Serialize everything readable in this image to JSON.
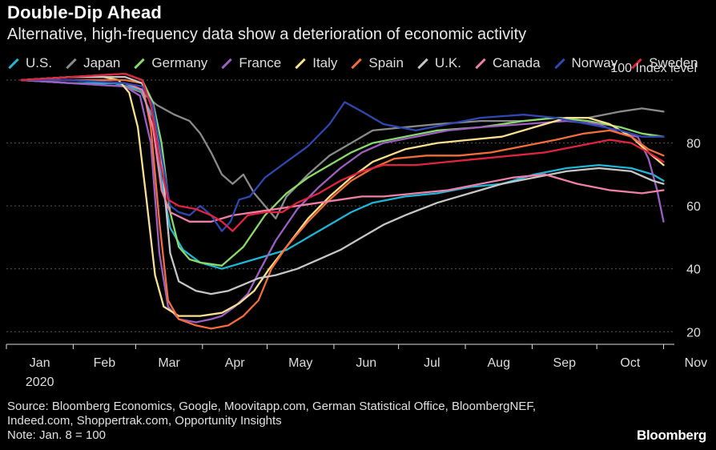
{
  "chart_data": {
    "type": "line",
    "title": "Double-Dip Ahead",
    "subtitle": "Alternative, high-frequency data show a deterioration of economic activity",
    "ylabel": "100 Index level",
    "ylim": [
      16,
      100
    ],
    "y_ticks": [
      20,
      40,
      60,
      80
    ],
    "x_ticks": [
      "Jan",
      "Feb",
      "Mar",
      "Apr",
      "May",
      "Jun",
      "Jul",
      "Aug",
      "Sep",
      "Oct",
      "Nov"
    ],
    "year_label": "2020",
    "xlim": [
      0,
      310
    ],
    "x_unit": "day of 2020 (Jan 1 = 0)",
    "grid": true,
    "legend_position": "top",
    "series": [
      {
        "name": "U.S.",
        "color": "#1fb6d6",
        "points": [
          [
            7,
            100
          ],
          [
            30,
            99
          ],
          [
            50,
            99
          ],
          [
            62,
            97
          ],
          [
            68,
            88
          ],
          [
            72,
            68
          ],
          [
            76,
            53
          ],
          [
            82,
            46
          ],
          [
            90,
            42
          ],
          [
            100,
            40
          ],
          [
            110,
            42
          ],
          [
            120,
            44
          ],
          [
            130,
            46
          ],
          [
            140,
            50
          ],
          [
            150,
            54
          ],
          [
            160,
            58
          ],
          [
            170,
            61
          ],
          [
            185,
            63
          ],
          [
            200,
            64
          ],
          [
            215,
            66
          ],
          [
            230,
            67
          ],
          [
            245,
            70
          ],
          [
            260,
            72
          ],
          [
            275,
            73
          ],
          [
            290,
            72
          ],
          [
            300,
            70
          ],
          [
            305,
            68
          ]
        ]
      },
      {
        "name": "Japan",
        "color": "#8a8a8a",
        "points": [
          [
            7,
            100
          ],
          [
            30,
            99
          ],
          [
            55,
            98
          ],
          [
            63,
            96
          ],
          [
            70,
            92
          ],
          [
            78,
            89
          ],
          [
            85,
            87
          ],
          [
            90,
            83
          ],
          [
            95,
            77
          ],
          [
            100,
            70
          ],
          [
            105,
            67
          ],
          [
            110,
            70
          ],
          [
            115,
            64
          ],
          [
            120,
            60
          ],
          [
            125,
            56
          ],
          [
            130,
            63
          ],
          [
            140,
            70
          ],
          [
            150,
            76
          ],
          [
            160,
            80
          ],
          [
            170,
            84
          ],
          [
            185,
            85
          ],
          [
            200,
            86
          ],
          [
            220,
            87
          ],
          [
            240,
            87
          ],
          [
            255,
            88
          ],
          [
            270,
            88
          ],
          [
            285,
            90
          ],
          [
            295,
            91
          ],
          [
            305,
            90
          ]
        ]
      },
      {
        "name": "Germany",
        "color": "#89d96b",
        "points": [
          [
            7,
            100
          ],
          [
            30,
            101
          ],
          [
            55,
            102
          ],
          [
            63,
            100
          ],
          [
            68,
            93
          ],
          [
            72,
            80
          ],
          [
            76,
            58
          ],
          [
            80,
            47
          ],
          [
            85,
            43
          ],
          [
            90,
            42
          ],
          [
            100,
            41
          ],
          [
            110,
            47
          ],
          [
            120,
            57
          ],
          [
            130,
            64
          ],
          [
            140,
            69
          ],
          [
            150,
            73
          ],
          [
            160,
            77
          ],
          [
            170,
            80
          ],
          [
            185,
            82
          ],
          [
            200,
            84
          ],
          [
            220,
            85
          ],
          [
            240,
            87
          ],
          [
            255,
            88
          ],
          [
            270,
            87
          ],
          [
            285,
            85
          ],
          [
            295,
            83
          ],
          [
            305,
            82
          ]
        ]
      },
      {
        "name": "France",
        "color": "#9d5fc2",
        "points": [
          [
            7,
            100
          ],
          [
            30,
            99
          ],
          [
            55,
            98
          ],
          [
            62,
            95
          ],
          [
            67,
            80
          ],
          [
            71,
            45
          ],
          [
            75,
            28
          ],
          [
            80,
            24
          ],
          [
            88,
            23
          ],
          [
            95,
            24
          ],
          [
            100,
            25
          ],
          [
            106,
            28
          ],
          [
            112,
            32
          ],
          [
            118,
            40
          ],
          [
            125,
            49
          ],
          [
            135,
            59
          ],
          [
            145,
            66
          ],
          [
            155,
            72
          ],
          [
            165,
            77
          ],
          [
            175,
            80
          ],
          [
            190,
            82
          ],
          [
            205,
            84
          ],
          [
            220,
            85
          ],
          [
            240,
            86
          ],
          [
            260,
            87
          ],
          [
            275,
            86
          ],
          [
            285,
            83
          ],
          [
            293,
            82
          ],
          [
            298,
            75
          ],
          [
            302,
            65
          ],
          [
            305,
            55
          ]
        ]
      },
      {
        "name": "Italy",
        "color": "#f9e08e",
        "points": [
          [
            7,
            100
          ],
          [
            30,
            101
          ],
          [
            45,
            101
          ],
          [
            52,
            100
          ],
          [
            57,
            96
          ],
          [
            61,
            85
          ],
          [
            65,
            62
          ],
          [
            69,
            38
          ],
          [
            73,
            28
          ],
          [
            80,
            25
          ],
          [
            90,
            25
          ],
          [
            100,
            26
          ],
          [
            108,
            29
          ],
          [
            115,
            33
          ],
          [
            122,
            40
          ],
          [
            130,
            47
          ],
          [
            140,
            56
          ],
          [
            150,
            63
          ],
          [
            160,
            69
          ],
          [
            170,
            74
          ],
          [
            185,
            78
          ],
          [
            200,
            80
          ],
          [
            215,
            81
          ],
          [
            230,
            82
          ],
          [
            245,
            85
          ],
          [
            260,
            88
          ],
          [
            270,
            88
          ],
          [
            280,
            86
          ],
          [
            290,
            82
          ],
          [
            298,
            77
          ],
          [
            305,
            73
          ]
        ]
      },
      {
        "name": "Spain",
        "color": "#f26d3a",
        "points": [
          [
            7,
            100
          ],
          [
            30,
            100
          ],
          [
            55,
            100
          ],
          [
            63,
            99
          ],
          [
            67,
            85
          ],
          [
            71,
            55
          ],
          [
            75,
            30
          ],
          [
            80,
            24
          ],
          [
            88,
            22
          ],
          [
            95,
            21
          ],
          [
            103,
            22
          ],
          [
            110,
            25
          ],
          [
            117,
            30
          ],
          [
            123,
            40
          ],
          [
            130,
            47
          ],
          [
            140,
            55
          ],
          [
            150,
            62
          ],
          [
            160,
            68
          ],
          [
            170,
            72
          ],
          [
            180,
            75
          ],
          [
            195,
            76
          ],
          [
            210,
            76
          ],
          [
            225,
            77
          ],
          [
            240,
            79
          ],
          [
            255,
            81
          ],
          [
            268,
            83
          ],
          [
            280,
            84
          ],
          [
            290,
            82
          ],
          [
            298,
            78
          ],
          [
            305,
            76
          ]
        ]
      },
      {
        "name": "U.K.",
        "color": "#c6c6c6",
        "points": [
          [
            7,
            100
          ],
          [
            30,
            101
          ],
          [
            55,
            101
          ],
          [
            63,
            99
          ],
          [
            68,
            92
          ],
          [
            72,
            75
          ],
          [
            76,
            45
          ],
          [
            80,
            36
          ],
          [
            88,
            33
          ],
          [
            95,
            32
          ],
          [
            103,
            33
          ],
          [
            110,
            35
          ],
          [
            117,
            37
          ],
          [
            125,
            38
          ],
          [
            135,
            40
          ],
          [
            145,
            43
          ],
          [
            155,
            46
          ],
          [
            165,
            50
          ],
          [
            175,
            54
          ],
          [
            185,
            57
          ],
          [
            200,
            61
          ],
          [
            215,
            64
          ],
          [
            230,
            67
          ],
          [
            245,
            69
          ],
          [
            260,
            71
          ],
          [
            275,
            72
          ],
          [
            290,
            71
          ],
          [
            300,
            68
          ],
          [
            305,
            67
          ]
        ]
      },
      {
        "name": "Canada",
        "color": "#ef7fa7",
        "points": [
          [
            7,
            100
          ],
          [
            30,
            100
          ],
          [
            55,
            99
          ],
          [
            63,
            97
          ],
          [
            68,
            85
          ],
          [
            72,
            65
          ],
          [
            76,
            58
          ],
          [
            85,
            55
          ],
          [
            95,
            55
          ],
          [
            105,
            57
          ],
          [
            115,
            58
          ],
          [
            125,
            59
          ],
          [
            135,
            60
          ],
          [
            145,
            61
          ],
          [
            155,
            62
          ],
          [
            165,
            63
          ],
          [
            175,
            63
          ],
          [
            190,
            64
          ],
          [
            205,
            65
          ],
          [
            220,
            67
          ],
          [
            235,
            69
          ],
          [
            250,
            70
          ],
          [
            265,
            67
          ],
          [
            280,
            65
          ],
          [
            295,
            64
          ],
          [
            305,
            65
          ]
        ]
      },
      {
        "name": "Norway",
        "color": "#2f47b0",
        "points": [
          [
            7,
            100
          ],
          [
            30,
            100
          ],
          [
            55,
            99
          ],
          [
            63,
            98
          ],
          [
            68,
            92
          ],
          [
            72,
            76
          ],
          [
            76,
            60
          ],
          [
            80,
            58
          ],
          [
            85,
            57
          ],
          [
            90,
            60
          ],
          [
            95,
            57
          ],
          [
            100,
            52
          ],
          [
            104,
            55
          ],
          [
            108,
            62
          ],
          [
            113,
            63
          ],
          [
            120,
            69
          ],
          [
            130,
            74
          ],
          [
            140,
            79
          ],
          [
            150,
            86
          ],
          [
            157,
            93
          ],
          [
            165,
            90
          ],
          [
            175,
            86
          ],
          [
            190,
            84
          ],
          [
            205,
            86
          ],
          [
            220,
            88
          ],
          [
            240,
            89
          ],
          [
            255,
            88
          ],
          [
            270,
            86
          ],
          [
            285,
            84
          ],
          [
            295,
            82
          ],
          [
            305,
            82
          ]
        ]
      },
      {
        "name": "Sweden",
        "color": "#e0243e",
        "points": [
          [
            7,
            100
          ],
          [
            30,
            101
          ],
          [
            55,
            102
          ],
          [
            63,
            100
          ],
          [
            67,
            92
          ],
          [
            71,
            75
          ],
          [
            75,
            62
          ],
          [
            80,
            60
          ],
          [
            88,
            59
          ],
          [
            95,
            57
          ],
          [
            100,
            55
          ],
          [
            105,
            52
          ],
          [
            112,
            57
          ],
          [
            120,
            58
          ],
          [
            128,
            58
          ],
          [
            135,
            61
          ],
          [
            145,
            64
          ],
          [
            155,
            68
          ],
          [
            165,
            71
          ],
          [
            175,
            73
          ],
          [
            190,
            73
          ],
          [
            205,
            74
          ],
          [
            220,
            75
          ],
          [
            235,
            76
          ],
          [
            250,
            77
          ],
          [
            265,
            79
          ],
          [
            280,
            81
          ],
          [
            290,
            80
          ],
          [
            298,
            77
          ],
          [
            305,
            74
          ]
        ]
      }
    ]
  },
  "footer": {
    "source_line1": "Source: Bloomberg Economics, Google, Moovitapp.com, German Statistical Office, BloombergNEF,",
    "source_line2": "Indeed.com, Shoppertrak.com, Opportunity Insights",
    "note": "Note: Jan. 8 = 100",
    "brand": "Bloomberg"
  }
}
